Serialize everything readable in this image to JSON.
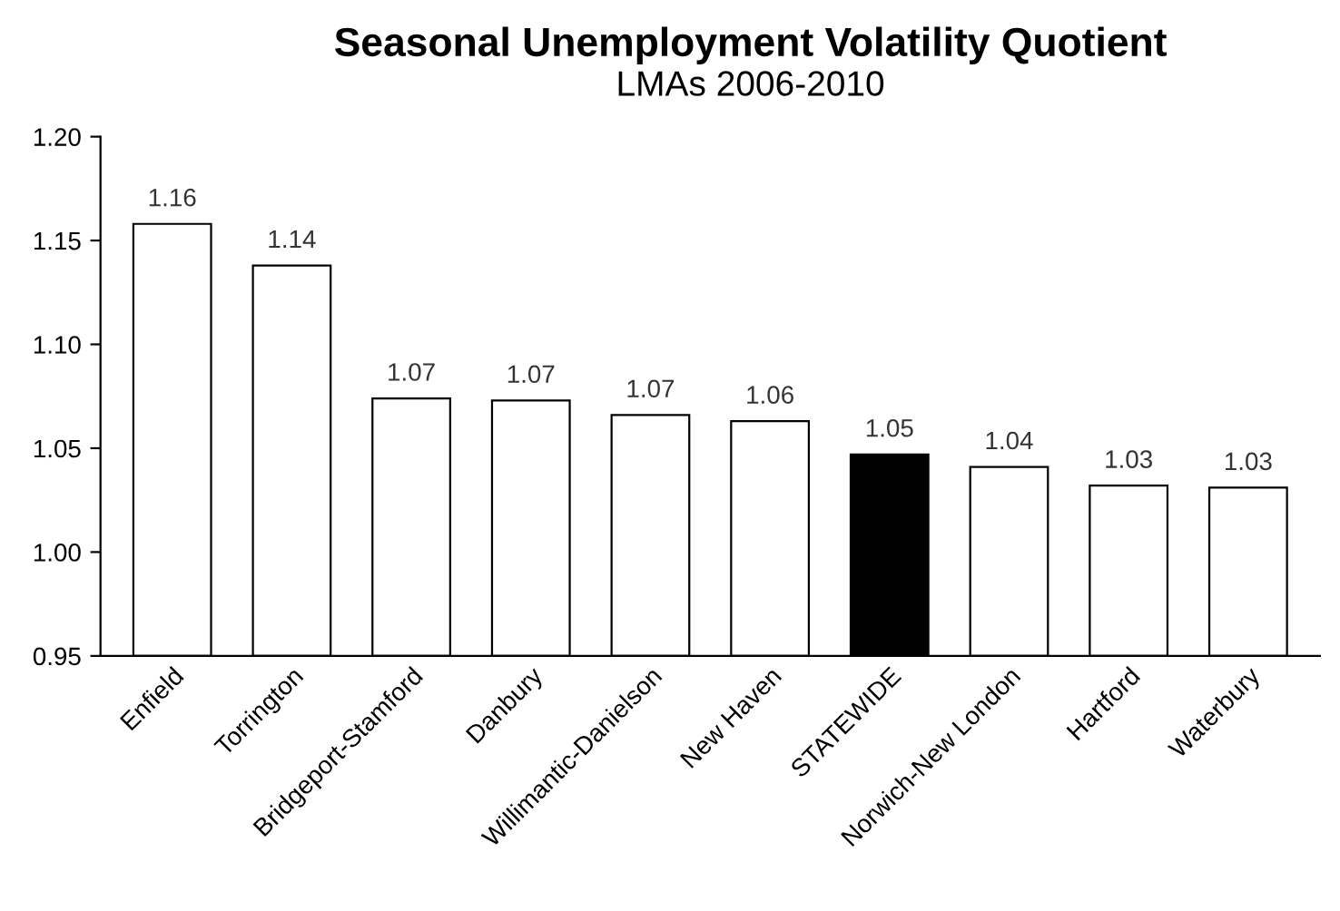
{
  "chart_data": {
    "type": "bar",
    "title": "Seasonal Unemployment Volatility Quotient",
    "subtitle": "LMAs 2006-2010",
    "categories": [
      "Enfield",
      "Torrington",
      "Bridgeport-Stamford",
      "Danbury",
      "Willimantic-Danielson",
      "New Haven",
      "STATEWIDE",
      "Norwich-New London",
      "Hartford",
      "Waterbury"
    ],
    "values": [
      1.158,
      1.138,
      1.074,
      1.073,
      1.066,
      1.063,
      1.047,
      1.041,
      1.032,
      1.031
    ],
    "value_labels": [
      "1.16",
      "1.14",
      "1.07",
      "1.07",
      "1.07",
      "1.06",
      "1.05",
      "1.04",
      "1.03",
      "1.03"
    ],
    "colors": [
      "#ffffff",
      "#ffffff",
      "#ffffff",
      "#ffffff",
      "#ffffff",
      "#ffffff",
      "#000000",
      "#ffffff",
      "#ffffff",
      "#ffffff"
    ],
    "ylim": [
      0.95,
      1.2
    ],
    "yticks": [
      {
        "value": 0.95,
        "label": "0.95"
      },
      {
        "value": 1.0,
        "label": "1.00"
      },
      {
        "value": 1.05,
        "label": "1.05"
      },
      {
        "value": 1.1,
        "label": "1.10"
      },
      {
        "value": 1.15,
        "label": "1.15"
      },
      {
        "value": 1.2,
        "label": "1.20"
      }
    ],
    "grid": false,
    "legend": false
  }
}
